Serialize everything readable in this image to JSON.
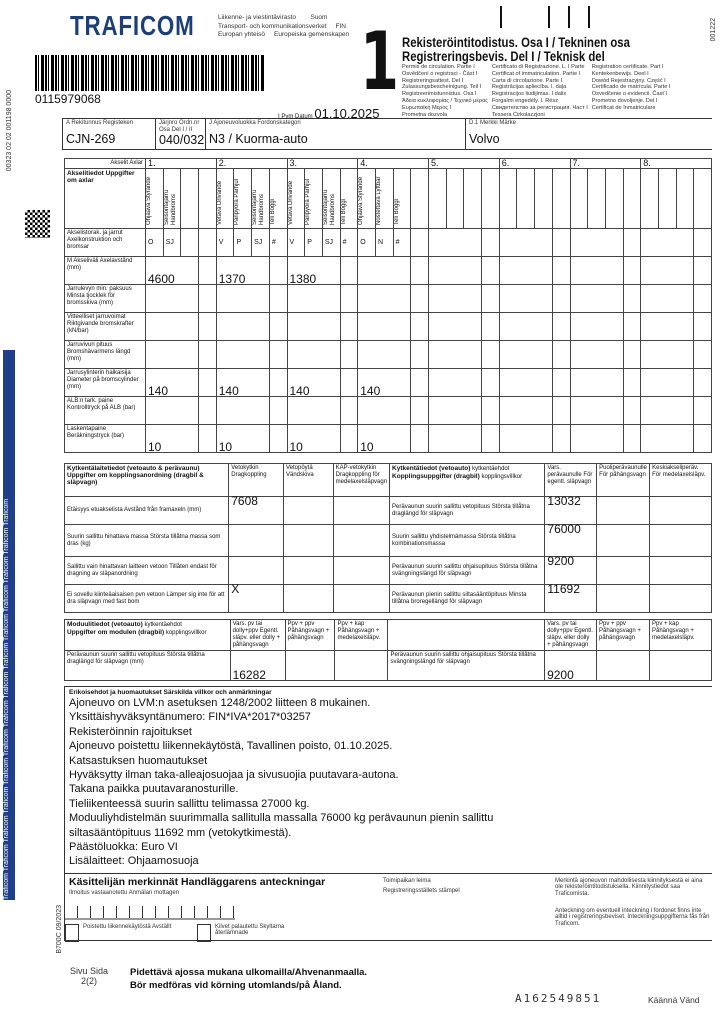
{
  "logo": "TRAFICOM",
  "agency": [
    "Liikenne- ja viestintävirasto        Suom",
    "Transport- och kommunikationsverket     FIN",
    "Europan yhteisö     Europeiska gemenskapen"
  ],
  "barcode_number": "0115979068",
  "side_code_left": "00323 02 02 001198 0000",
  "side_code_right": "001222",
  "form_code": "B700C 09/2023",
  "stripe_text": "Traficom Traficom Traficom Traficom Traficom Traficom Traficom Traficom Traficom Traficom Traficom Traficom Traficom Traficom",
  "big_number": "1",
  "title": [
    "Rekisteröintitodistus. Osa I / Tekninen osa",
    "Registreringsbevis. Del I / Teknisk del"
  ],
  "languages": [
    "Permis de circulation. Partie I",
    "Osvědčení o registraci - Část I",
    "Registreringsattest. Del I",
    "Zulassungsbescheinigung. Teil I",
    "Registreerimistunnistus. Osa I",
    "Άδεια κυκλοφορίας / Τεχνικό μέρος",
    "Ευρωπαϊκή Μέρος I",
    "Prometna dozvola",
    "Certificato di Registrazione. L. I Parte",
    "Certificat of immatriculation. Partie I",
    "Carta di circolazione. Parte I",
    "Reģistrācijas apliecība. I. daļa",
    "Registracijos liudijimas. I dalis",
    "Forgalmi engedély. I. Rész",
    "Свидетелство за регистрация. Част I",
    "Tessera Ċirkolazzjoni",
    "Registration certificate. Part I",
    "Kentekenbewijs. Deel I",
    "Dowód Rejestracyjny. Część I",
    "Certificado de matrícula. Parte I",
    "Osvedčenie o evidencii. Časť I",
    "Prometno dovoljenje. Del I",
    "Certificat de înmatriculare"
  ],
  "date_label": "I Pvm Datum",
  "date": "01.10.2025",
  "header": {
    "a_label": "A Rekitunnus Registeken",
    "a_value": "CJN-269",
    "order_label": "Järjnro Ordn.nr Osa Del I / II",
    "order_value": "040/032",
    "j_label": "J Ajoneuvoluokka Fordonskategori",
    "j_value": "N3 / Kuorma-auto",
    "d1_label": "D.1 Merkki Märke",
    "d1_value": "Volvo"
  },
  "axles": {
    "header_label": "Akselit Axlar",
    "numbers": [
      "1.",
      "2.",
      "3.",
      "4.",
      "5.",
      "6.",
      "7.",
      "8."
    ],
    "info_label": "Akselitiedot Uppgifter om axlar",
    "sub": [
      [
        "Ohjaava Styrande",
        "Seisontajarru Handbroms",
        "",
        ""
      ],
      [
        "Vetävä Drivande",
        "Paripyörä Parhjul",
        "Seisontajarru Handbroms",
        "Teli Boggi"
      ],
      [
        "Vetävä Drivande",
        "Paripyörä Parhjul",
        "Seisontajarru Handbroms",
        "Teli Boggi"
      ],
      [
        "Ohjaava Styrande",
        "Nostettava Lyftbar",
        "Teli Boggi",
        ""
      ]
    ],
    "rows": [
      {
        "label": "Akselistorak. ja jarrut Axelkonstruktion och bromsar",
        "cells": [
          [
            "O",
            "SJ"
          ],
          [
            "V",
            "P",
            "SJ",
            "#"
          ],
          [
            "V",
            "P",
            "SJ",
            "#"
          ],
          [
            "O",
            "N",
            "#"
          ]
        ]
      },
      {
        "label": "M Akseliväli Axelavstånd (mm)",
        "cells": [
          [
            "4600"
          ],
          [
            "1370"
          ],
          [
            "1380"
          ],
          [
            ""
          ]
        ]
      },
      {
        "label": "Jarrulevyn min. paksuus Minsta tjocklek för bromsskiva (mm)",
        "cells": [
          [
            ""
          ],
          [
            ""
          ],
          [
            ""
          ],
          [
            ""
          ]
        ]
      },
      {
        "label": "Vitteelliset jarruvoimat Riktgivande bromskrafter (kN/bar)",
        "cells": [
          [
            ""
          ],
          [
            ""
          ],
          [
            ""
          ],
          [
            ""
          ]
        ]
      },
      {
        "label": "Jarruvivun pituus Bromshävarmens längd (mm)",
        "cells": [
          [
            ""
          ],
          [
            ""
          ],
          [
            ""
          ],
          [
            ""
          ]
        ]
      },
      {
        "label": "Jarrusylinterin halkaisija Diameter på bromscylinder (mm)",
        "cells": [
          [
            "140"
          ],
          [
            "140"
          ],
          [
            "140"
          ],
          [
            "140"
          ]
        ]
      },
      {
        "label": "ALB:n tark. paine Kontrolltryck på ALB (bar)",
        "cells": [
          [
            ""
          ],
          [
            ""
          ],
          [
            ""
          ],
          [
            ""
          ]
        ]
      },
      {
        "label": "Laskentapaine Beräkningstryck (bar)",
        "cells": [
          [
            "10"
          ],
          [
            "10"
          ],
          [
            "10"
          ],
          [
            "10"
          ]
        ]
      }
    ]
  },
  "coupling": {
    "title": "Kytkentälaitetiedot (vetoauto & perävaunu) Uppgifter om kopplingsanordning (dragbil & släpvagn)",
    "cols": [
      "Vetokytkin Dragkoppling",
      "Vetopöytä Vändskiva",
      "KAP-vetokytkin Dragkoppling för medelaxelsläpvagn"
    ],
    "title2": "Kytkentätiedot (vetoauto)",
    "title2_sub": "kytkentäehdot",
    "title2b": "Kopplingsuppgifter (dragbil)",
    "title2b_sub": "kopplingsvillkor",
    "cols2": [
      "Vars. perävaunulle För egentl. släpvagn",
      "Puoliperävaunulle För påhängsvagn",
      "Keskiakseliperäv. För medelaxelsläpv."
    ],
    "rows": [
      {
        "l": "Etäisyys etuakselista Avstånd från framaxeln (mm)",
        "v": "7608",
        "r": "Perävaunun suurin sallittu vetopituus Största tillåtna draglängd för släpvagn",
        "rv": "13032"
      },
      {
        "l": "Suurin sallittu hinattava massa Största tillåtna massa som dras (kg)",
        "v": "",
        "r": "Suurin sallittu yhdistelmämassa Största tillåtna kombinationsmassa",
        "rv": "76000"
      },
      {
        "l": "Sallittu vain hinattavan laitteen vetoon Tillåten endast för dragning av släpanordning",
        "v": "",
        "r": "Perävaunun suurin sallittu ohjaisupituus Största tillåtna svängningslängd för släpvagn",
        "rv": "9200"
      },
      {
        "l": "Ei sovellu kiinteäaisaisen pvn vetoon Lämper sig inte för att dra släpvagn med fast bom",
        "v": "X",
        "r": "Perävaunun pienin sallittu siltasääntöpituus Minsta tillåtna broregellängd för släpvagn",
        "rv": "11692"
      }
    ]
  },
  "module": {
    "title": "Moduulitiedot (vetoauto)",
    "title_sub": "kytkentäehdot",
    "title_b": "Uppgifter om modulen (dragbil)",
    "title_b_sub": "kopplingsvillkor",
    "cols": [
      "Vars. pv tai dolly+ppv Egentl. släpv. eller dolly + påhängsvagn",
      "Ppv + ppv Påhängsvagn + påhängsvagn",
      "Ppv + kap Påhängsvagn + medelaxelsläpv."
    ],
    "cols2": [
      "Vars. pv tai dolly+ppv Egentl. släpv. eller dolly + påhängsvagn",
      "Ppv + ppv Påhängsvagn + påhängsvagn",
      "Ppv + kap Påhängsvagn + medelaxelsläpv."
    ],
    "row": {
      "l": "Perävaunun suurin sallittu vetopituus Största tillåtna draglängd för släpvagn (mm)",
      "v": "16282",
      "r": "Perävaunun suurin sallittu ohjaisupituus Största tillåtna svängningslängd för släpvagn",
      "rv": "9200"
    }
  },
  "remarks": {
    "title": "Erikoisehdot ja huomautukset Särskilda villkor och anmärkningar",
    "lines": [
      "Ajoneuvo on LVM:n asetuksen 1248/2002 liitteen 8 mukainen.",
      "Yksittäishyväksyntänumero: FIN*IVA*2017*03257",
      "Rekisteröinnin rajoitukset",
      "Ajoneuvo poistettu liikennekäytöstä, Tavallinen poisto, 01.10.2025.",
      "Katsastuksen huomautukset",
      "Hyväksytty ilman taka-alleajosuojaa ja sivusuojia puutavara-autona.",
      "Takana paikka puutavaranosturille.",
      "Tieliikenteessä suurin sallittu telimassa 27000 kg.",
      "Moduuliyhdistelmän suurimmalla sallitulla massalla 76000 kg perävaunun pienin sallittu",
      "siltasääntöpituus 11692 mm (vetokytkimestä).",
      "Päästöluokka: Euro VI",
      "Lisälaitteet: Ohjaamosuoja"
    ]
  },
  "handler": {
    "title": "Käsittelijän merkinnät Handläggarens anteckningar",
    "receiver": "Ilmoitus vastaanotettu Anmälan mottagen",
    "stamp1": "Toimipaikan leima",
    "stamp2": "Registreringsställets stämpel",
    "check1": "Poistettu liikennekäytöstä Avställt",
    "check2": "Kilvet palautettu Skyltarna återlämnade",
    "note1": "Merkintä ajoneuvon mahdollisesta kiinnityksestä ei aina ole rekisteröintitodistuksella. Kiinnitystiedot saa Traficomista.",
    "note2": "Anteckning om eventuell inteckning i fordonet finns inte alltid i registreringsbeviset. Inteckningsuppgifterna fås från Traficom."
  },
  "footer": {
    "page_label": "Sivu Sida",
    "page": "2(2)",
    "line1": "Pidettävä ajossa mukana ulkomailla/Ahvenanmaalla.",
    "line2": "Bör medföras vid körning utomlands/på Åland.",
    "serial": "A162549851",
    "turn": "Käännä Vänd"
  }
}
